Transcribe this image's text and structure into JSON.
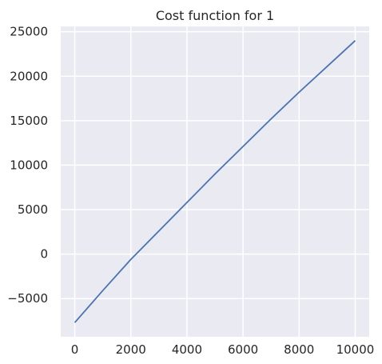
{
  "chart_data": {
    "type": "line",
    "title": "Cost function for 1",
    "xlabel": "",
    "ylabel": "",
    "xlim": [
      -500,
      10500
    ],
    "ylim": [
      -9300,
      25600
    ],
    "grid": true,
    "x_ticks": [
      {
        "value": 0,
        "label": "0"
      },
      {
        "value": 2000,
        "label": "2000"
      },
      {
        "value": 4000,
        "label": "4000"
      },
      {
        "value": 6000,
        "label": "6000"
      },
      {
        "value": 8000,
        "label": "8000"
      },
      {
        "value": 10000,
        "label": "10000"
      }
    ],
    "y_ticks": [
      {
        "value": -5000,
        "label": "−5000"
      },
      {
        "value": 0,
        "label": "0"
      },
      {
        "value": 5000,
        "label": "5000"
      },
      {
        "value": 10000,
        "label": "10000"
      },
      {
        "value": 15000,
        "label": "15000"
      },
      {
        "value": 20000,
        "label": "20000"
      },
      {
        "value": 25000,
        "label": "25000"
      }
    ],
    "series": [
      {
        "color": "#4c72b0",
        "x": [
          0,
          1000,
          2000,
          3000,
          4000,
          5000,
          6000,
          7000,
          8000,
          9000,
          10000
        ],
        "y": [
          -7700,
          -4100,
          -600,
          2600,
          5800,
          9000,
          12100,
          15200,
          18200,
          21100,
          24000
        ]
      }
    ],
    "colors": {
      "plot_background": "#eaeaf2",
      "grid": "#ffffff",
      "text": "#262626"
    }
  }
}
